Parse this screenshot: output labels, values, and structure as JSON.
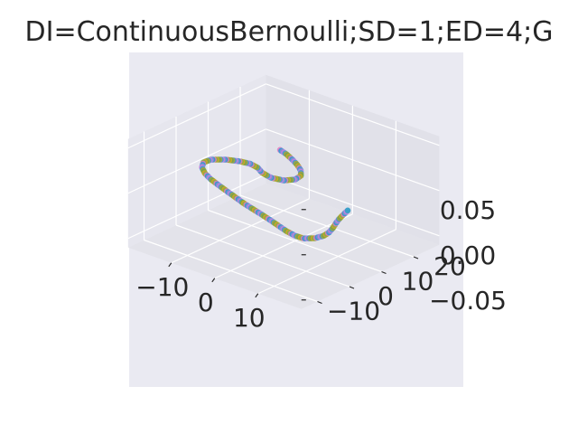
{
  "chart_data": {
    "type": "scatter3d",
    "title": "DI=ContinuousBernoulli;SD=1;ED=4;G",
    "xlabel": "",
    "ylabel": "",
    "zlabel": "",
    "xlim": [
      -20,
      20
    ],
    "ylim": [
      -15,
      28
    ],
    "zlim": [
      -0.06,
      0.06
    ],
    "x_ticks": [
      "−10",
      "0",
      "10"
    ],
    "y_ticks": [
      "−10",
      "0",
      "10",
      "20"
    ],
    "z_ticks": [
      "−0.05",
      "0.00",
      "0.05"
    ],
    "grid": true,
    "colors": [
      "#e377c2",
      "#1f9bd6",
      "#8a8fd0",
      "#c97fe0",
      "#3aa0c8",
      "#b0a030",
      "#6aa84f",
      "#e0a020",
      "#7fb24a"
    ],
    "series": [
      {
        "points": [
          [
            -12.3,
            22.0,
            0.0
          ],
          [
            -10.2,
            21.2,
            0.0
          ],
          [
            -8.0,
            20.0,
            0.0
          ],
          [
            -5.8,
            18.6,
            0.0
          ],
          [
            -3.8,
            17.0,
            0.0
          ],
          [
            -2.3,
            15.0,
            0.0
          ],
          [
            -2.0,
            12.8,
            0.0
          ],
          [
            -3.2,
            10.9,
            0.0
          ],
          [
            -5.6,
            10.2,
            0.0
          ],
          [
            -8.2,
            10.9,
            0.0
          ],
          [
            -10.2,
            12.2,
            0.0
          ],
          [
            -12.3,
            12.7,
            0.0
          ],
          [
            -14.4,
            12.2,
            0.0
          ],
          [
            -16.8,
            10.9,
            0.0
          ],
          [
            -18.6,
            9.0,
            0.0
          ],
          [
            -18.8,
            6.9,
            0.0
          ],
          [
            -17.6,
            4.8,
            0.0
          ],
          [
            -15.6,
            3.0,
            0.0
          ],
          [
            -13.1,
            1.5,
            0.0
          ],
          [
            -10.4,
            0.3,
            0.0
          ],
          [
            -7.6,
            -0.9,
            0.0
          ],
          [
            -4.9,
            -2.0,
            0.0
          ],
          [
            -2.3,
            -3.1,
            0.0
          ]
        ]
      },
      {
        "points": [
          [
            -2.3,
            -3.1,
            0.0
          ],
          [
            0.6,
            -4.1,
            0.0
          ],
          [
            3.6,
            -5.1,
            0.0
          ],
          [
            6.4,
            -6.1,
            0.0
          ],
          [
            9.2,
            -7.2,
            0.0
          ],
          [
            11.6,
            -8.1,
            0.0
          ],
          [
            13.8,
            -8.6,
            0.0
          ],
          [
            15.7,
            -8.5,
            0.0
          ],
          [
            17.1,
            -6.9,
            0.0
          ],
          [
            17.6,
            -4.8,
            0.0
          ],
          [
            17.3,
            -2.7,
            0.0
          ],
          [
            16.6,
            -0.6,
            0.0
          ],
          [
            15.7,
            1.5,
            0.0
          ],
          [
            14.9,
            3.6,
            0.0
          ],
          [
            14.3,
            5.6,
            0.0
          ],
          [
            13.6,
            8.1,
            0.0
          ]
        ]
      }
    ]
  }
}
